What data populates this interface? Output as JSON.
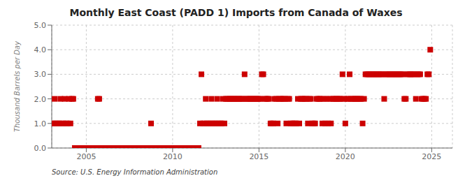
{
  "chart_data": {
    "type": "scatter",
    "title": "Monthly East Coast (PADD 1) Imports from Canada of Waxes",
    "ylabel": "Thousand Barrels per Day",
    "annotations": [
      "Source: U.S. Energy Information Administration"
    ],
    "color": "#cc0000",
    "marker": "square",
    "grid": true,
    "xlim": [
      2003.0,
      2026.2
    ],
    "xticks": [
      2005,
      2010,
      2015,
      2020,
      2025
    ],
    "ylim": [
      0,
      5.0
    ],
    "yticks": [
      {
        "value": 0,
        "label": "0.0"
      },
      {
        "value": 1,
        "label": "1.0"
      },
      {
        "value": 2,
        "label": "2.0"
      },
      {
        "value": 3,
        "label": "3.0"
      },
      {
        "value": 4,
        "label": "4.0"
      },
      {
        "value": 5,
        "label": "5.0"
      }
    ],
    "x": [
      2003,
      2003.0833333333333,
      2003.1666666666667,
      2003.25,
      2003.3333333333333,
      2003.4166666666667,
      2003.5,
      2003.5833333333333,
      2003.6666666666667,
      2003.75,
      2003.8333333333333,
      2003.9166666666667,
      2004,
      2004.0833333333333,
      2004.1666666666667,
      2004.25,
      2004.3333333333333,
      2004.4166666666667,
      2004.5,
      2004.5833333333333,
      2004.6666666666667,
      2004.75,
      2004.8333333333333,
      2004.9166666666667,
      2005,
      2005.0833333333333,
      2005.1666666666667,
      2005.25,
      2005.3333333333333,
      2005.4166666666667,
      2005.5,
      2005.5833333333333,
      2005.6666666666667,
      2005.75,
      2005.8333333333333,
      2005.9166666666667,
      2006,
      2006.0833333333333,
      2006.1666666666667,
      2006.25,
      2006.3333333333333,
      2006.4166666666667,
      2006.5,
      2006.5833333333333,
      2006.6666666666667,
      2006.75,
      2006.8333333333333,
      2006.9166666666667,
      2007,
      2007.0833333333333,
      2007.1666666666667,
      2007.25,
      2007.3333333333333,
      2007.4166666666667,
      2007.5,
      2007.5833333333333,
      2007.6666666666667,
      2007.75,
      2007.8333333333333,
      2007.9166666666667,
      2008,
      2008.0833333333333,
      2008.1666666666667,
      2008.25,
      2008.3333333333333,
      2008.4166666666667,
      2008.5,
      2008.5833333333333,
      2008.6666666666667,
      2008.75,
      2008.8333333333333,
      2008.9166666666667,
      2009,
      2009.0833333333333,
      2009.1666666666667,
      2009.25,
      2009.3333333333333,
      2009.4166666666667,
      2009.5,
      2009.5833333333333,
      2009.6666666666667,
      2009.75,
      2009.8333333333333,
      2009.9166666666667,
      2010,
      2010.0833333333333,
      2010.1666666666667,
      2010.25,
      2010.3333333333333,
      2010.4166666666667,
      2010.5,
      2010.5833333333333,
      2010.6666666666667,
      2010.75,
      2010.8333333333333,
      2010.9166666666667,
      2011,
      2011.0833333333333,
      2011.1666666666667,
      2011.25,
      2011.3333333333333,
      2011.4166666666667,
      2011.5,
      2011.5833333333333,
      2011.6666666666667,
      2011.75,
      2011.8333333333333,
      2011.9166666666667,
      2012,
      2012.0833333333333,
      2012.1666666666667,
      2012.25,
      2012.3333333333333,
      2012.4166666666667,
      2012.5,
      2012.5833333333333,
      2012.6666666666667,
      2012.75,
      2012.8333333333333,
      2012.9166666666667,
      2013,
      2013.0833333333333,
      2013.1666666666667,
      2013.25,
      2013.3333333333333,
      2013.4166666666667,
      2013.5,
      2013.5833333333333,
      2013.6666666666667,
      2013.75,
      2013.8333333333333,
      2013.9166666666667,
      2014,
      2014.0833333333333,
      2014.1666666666667,
      2014.25,
      2014.3333333333333,
      2014.4166666666667,
      2014.5,
      2014.5833333333333,
      2014.6666666666667,
      2014.75,
      2014.8333333333333,
      2014.9166666666667,
      2015,
      2015.0833333333333,
      2015.1666666666667,
      2015.25,
      2015.3333333333333,
      2015.4166666666667,
      2015.5,
      2015.5833333333333,
      2015.6666666666667,
      2015.75,
      2015.8333333333333,
      2015.9166666666667,
      2016,
      2016.0833333333333,
      2016.1666666666667,
      2016.25,
      2016.3333333333333,
      2016.4166666666667,
      2016.5,
      2016.5833333333333,
      2016.6666666666667,
      2016.75,
      2016.8333333333333,
      2016.9166666666667,
      2017,
      2017.0833333333333,
      2017.1666666666667,
      2017.25,
      2017.3333333333333,
      2017.4166666666667,
      2017.5,
      2017.5833333333333,
      2017.6666666666667,
      2017.75,
      2017.8333333333333,
      2017.9166666666667,
      2018,
      2018.0833333333333,
      2018.1666666666667,
      2018.25,
      2018.3333333333333,
      2018.4166666666667,
      2018.5,
      2018.5833333333333,
      2018.6666666666667,
      2018.75,
      2018.8333333333333,
      2018.9166666666667,
      2019,
      2019.0833333333333,
      2019.1666666666667,
      2019.25,
      2019.3333333333333,
      2019.4166666666667,
      2019.5,
      2019.5833333333333,
      2019.6666666666667,
      2019.75,
      2019.8333333333333,
      2019.9166666666667,
      2020,
      2020.0833333333333,
      2020.1666666666667,
      2020.25,
      2020.3333333333333,
      2020.4166666666667,
      2020.5,
      2020.5833333333333,
      2020.6666666666667,
      2020.75,
      2020.8333333333333,
      2020.9166666666667,
      2021,
      2021.0833333333333,
      2021.1666666666667,
      2021.25,
      2021.3333333333333,
      2021.4166666666667,
      2021.5,
      2021.5833333333333,
      2021.6666666666667,
      2021.75,
      2021.8333333333333,
      2021.9166666666667,
      2022,
      2022.0833333333333,
      2022.1666666666667,
      2022.25,
      2022.3333333333333,
      2022.4166666666667,
      2022.5,
      2022.5833333333333,
      2022.6666666666667,
      2022.75,
      2022.8333333333333,
      2022.9166666666667,
      2023,
      2023.0833333333333,
      2023.1666666666667,
      2023.25,
      2023.3333333333333,
      2023.4166666666667,
      2023.5,
      2023.5833333333333,
      2023.6666666666667,
      2023.75,
      2023.8333333333333,
      2023.9166666666667,
      2024,
      2024.0833333333333,
      2024.1666666666667,
      2024.25,
      2024.3333333333333,
      2024.4166666666667,
      2024.5,
      2024.5833333333333,
      2024.6666666666667,
      2024.75,
      2024.8333333333333,
      2024.9166666666667
    ],
    "values": [
      1,
      1,
      2,
      1,
      1,
      1,
      2,
      1,
      1,
      2,
      1,
      1,
      2,
      1,
      2,
      2,
      0,
      0,
      0,
      0,
      0,
      0,
      0,
      0,
      0,
      0,
      0,
      0,
      0,
      0,
      0,
      0,
      2,
      2,
      0,
      0,
      0,
      0,
      0,
      0,
      0,
      0,
      0,
      0,
      0,
      0,
      0,
      0,
      0,
      0,
      0,
      0,
      0,
      0,
      0,
      0,
      0,
      0,
      0,
      0,
      0,
      0,
      0,
      0,
      0,
      0,
      0,
      0,
      0,
      1,
      0,
      0,
      0,
      0,
      0,
      0,
      0,
      0,
      0,
      0,
      0,
      0,
      0,
      0,
      0,
      0,
      0,
      0,
      0,
      0,
      0,
      0,
      0,
      0,
      0,
      0,
      0,
      0,
      0,
      0,
      0,
      0,
      0,
      1,
      3,
      1,
      1,
      2,
      1,
      1,
      1,
      2,
      1,
      1,
      1,
      2,
      1,
      1,
      1,
      2,
      1,
      2,
      2,
      2,
      2,
      2,
      2,
      2,
      2,
      2,
      2,
      2,
      2,
      2,
      3,
      2,
      2,
      2,
      2,
      2,
      2,
      2,
      2,
      2,
      2,
      2,
      3,
      3,
      2,
      2,
      2,
      2,
      1,
      1,
      1,
      2,
      2,
      1,
      2,
      2,
      2,
      2,
      2,
      1,
      2,
      2,
      1,
      1,
      1,
      1,
      1,
      2,
      1,
      2,
      2,
      2,
      2,
      2,
      1,
      2,
      2,
      1,
      1,
      1,
      2,
      2,
      2,
      2,
      1,
      2,
      1,
      2,
      1,
      2,
      1,
      2,
      2,
      2,
      2,
      2,
      2,
      2,
      3,
      2,
      1,
      2,
      2,
      3,
      2,
      2,
      2,
      2,
      2,
      2,
      2,
      2,
      1,
      2,
      3,
      3,
      3,
      3,
      3,
      3,
      3,
      3,
      3,
      3,
      3,
      3,
      3,
      2,
      3,
      3,
      3,
      3,
      3,
      3,
      3,
      3,
      3,
      3,
      3,
      3,
      3,
      2,
      2,
      3,
      3,
      3,
      3,
      3,
      3,
      2,
      3,
      3,
      3,
      2,
      2,
      2,
      2,
      3,
      3,
      4
    ]
  }
}
